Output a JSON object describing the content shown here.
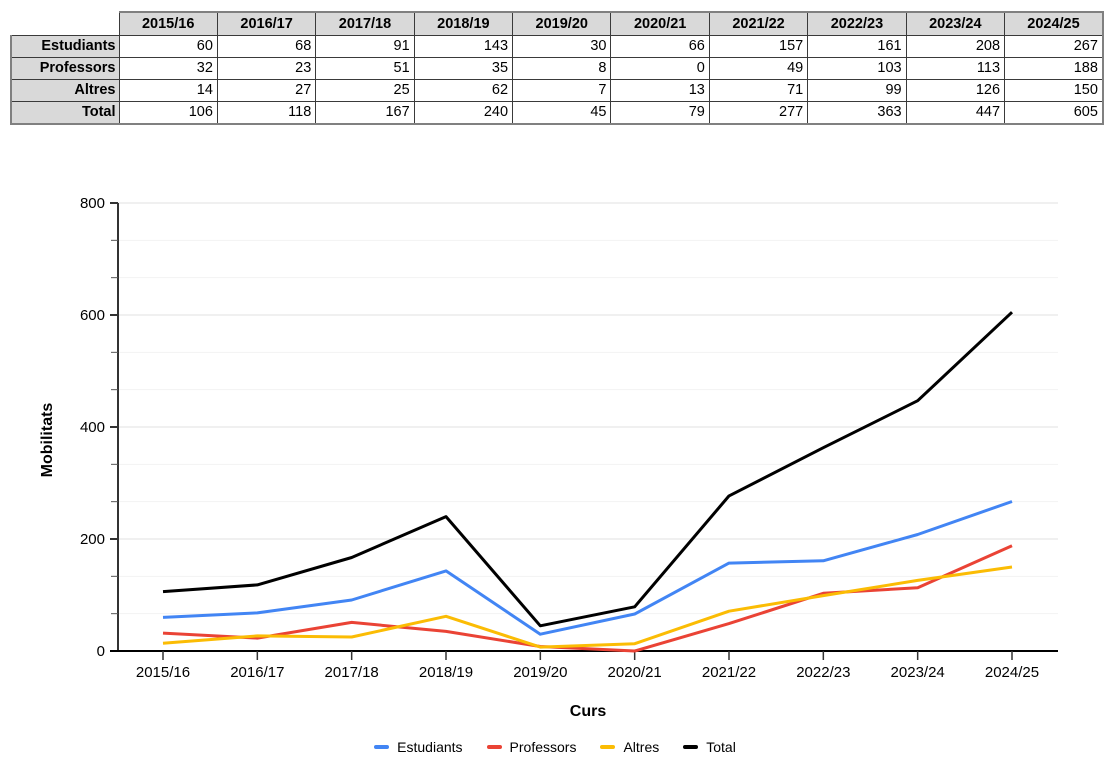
{
  "table": {
    "corner_label": "",
    "col_headers": [
      "2015/16",
      "2016/17",
      "2017/18",
      "2018/19",
      "2019/20",
      "2020/21",
      "2021/22",
      "2022/23",
      "2023/24",
      "2024/25"
    ],
    "rows": [
      {
        "label": "Estudiants",
        "values": [
          60,
          68,
          91,
          143,
          30,
          66,
          157,
          161,
          208,
          267
        ]
      },
      {
        "label": "Professors",
        "values": [
          32,
          23,
          51,
          35,
          8,
          0,
          49,
          103,
          113,
          188
        ]
      },
      {
        "label": "Altres",
        "values": [
          14,
          27,
          25,
          62,
          7,
          13,
          71,
          99,
          126,
          150
        ]
      },
      {
        "label": "Total",
        "values": [
          106,
          118,
          167,
          240,
          45,
          79,
          277,
          363,
          447,
          605
        ]
      }
    ]
  },
  "chart_data": {
    "type": "line",
    "title": "",
    "xlabel": "Curs",
    "ylabel": "Mobilitats",
    "categories": [
      "2015/16",
      "2016/17",
      "2017/18",
      "2018/19",
      "2019/20",
      "2020/21",
      "2021/22",
      "2022/23",
      "2023/24",
      "2024/25"
    ],
    "series": [
      {
        "name": "Estudiants",
        "color": "#4285F4",
        "values": [
          60,
          68,
          91,
          143,
          30,
          66,
          157,
          161,
          208,
          267
        ]
      },
      {
        "name": "Professors",
        "color": "#EA4335",
        "values": [
          32,
          23,
          51,
          35,
          8,
          0,
          49,
          103,
          113,
          188
        ]
      },
      {
        "name": "Altres",
        "color": "#FBBC04",
        "values": [
          14,
          27,
          25,
          62,
          7,
          13,
          71,
          99,
          126,
          150
        ]
      },
      {
        "name": "Total",
        "color": "#000000",
        "values": [
          106,
          118,
          167,
          240,
          45,
          79,
          277,
          363,
          447,
          605
        ]
      }
    ],
    "ylim": [
      0,
      800
    ],
    "yticks": [
      0,
      200,
      400,
      600,
      800
    ],
    "y_minor_divisions": 3,
    "grid": true,
    "legend_position": "bottom"
  },
  "colors": {
    "table_header_bg": "#d9d9d9",
    "grid_major": "#e2e2e2",
    "grid_minor": "#f2f2f2",
    "axis_x": "#000000",
    "axis_y": "#333333"
  }
}
